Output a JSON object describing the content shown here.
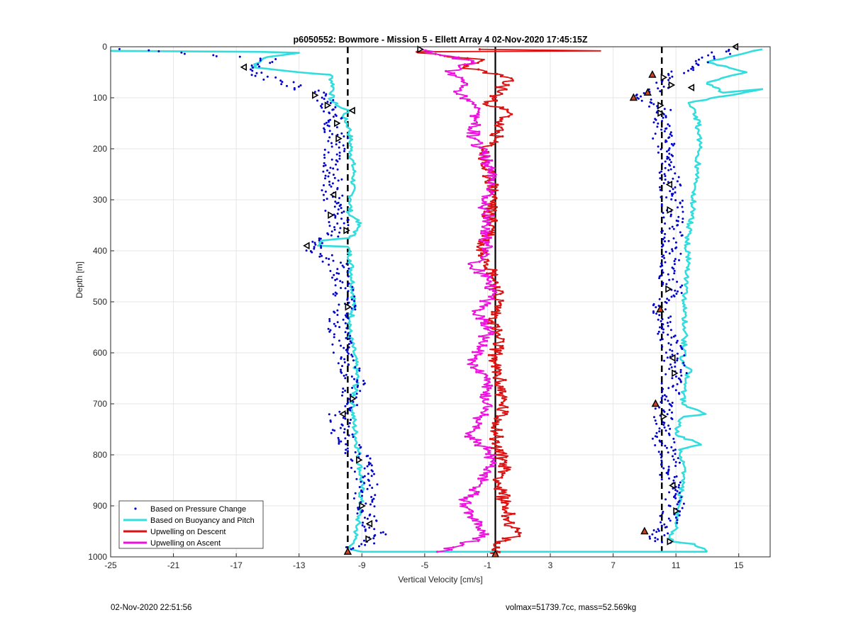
{
  "footer": {
    "left_text": "02-Nov-2020 22:51:56",
    "right_text": "volmax=51739.7cc, mass=52.569kg"
  },
  "chart_data": {
    "type": "line",
    "title": "p6050552: Bowmore - Mission 5 - Ellett Array 4 02-Nov-2020 17:45:15Z",
    "xlabel": "Vertical Velocity [cm/s]",
    "ylabel": "Depth [m]",
    "xlim": [
      -25,
      17
    ],
    "ylim": [
      1000,
      0
    ],
    "y_reversed": true,
    "xticks": [
      -25,
      -21,
      -17,
      -13,
      -9,
      -5,
      -1,
      3,
      7,
      11,
      15
    ],
    "yticks": [
      0,
      100,
      200,
      300,
      400,
      500,
      600,
      700,
      800,
      900,
      1000
    ],
    "grid": true,
    "legend_position": "bottom-left",
    "colors": {
      "pressure": "#0000cc",
      "buoyancy": "#33dddd",
      "descent": "#dd1111",
      "ascent": "#ee11dd",
      "reference": "#000000",
      "marker_fill": "#cc4422"
    },
    "reference_lines": {
      "solid_x": -0.5,
      "dashed_x": [
        -9.9,
        10.1
      ]
    },
    "series": [
      {
        "name": "Based on Pressure Change",
        "style": "dots",
        "descent_points": [
          [
            -24.2,
            5
          ],
          [
            -15,
            25
          ],
          [
            -16,
            50
          ],
          [
            -11.5,
            95
          ],
          [
            -11.2,
            120
          ],
          [
            -10.8,
            150
          ],
          [
            -10.6,
            180
          ],
          [
            -10.8,
            230
          ],
          [
            -10.9,
            290
          ],
          [
            -10.6,
            330
          ],
          [
            -10.3,
            360
          ],
          [
            -12.3,
            390
          ],
          [
            -10.4,
            430
          ],
          [
            -10.2,
            470
          ],
          [
            -10.0,
            510
          ],
          [
            -10.5,
            540
          ],
          [
            -10.2,
            600
          ],
          [
            -9.4,
            660
          ],
          [
            -9.8,
            700
          ],
          [
            -10.4,
            720
          ],
          [
            -10.3,
            760
          ],
          [
            -9.1,
            810
          ],
          [
            -8.7,
            860
          ],
          [
            -8.9,
            900
          ],
          [
            -8.4,
            930
          ],
          [
            -8.0,
            960
          ],
          [
            -9.9,
            990
          ]
        ],
        "ascent_points": [
          [
            14.5,
            5
          ],
          [
            12.5,
            30
          ],
          [
            10.5,
            60
          ],
          [
            10.2,
            80
          ],
          [
            8.9,
            95
          ],
          [
            10.0,
            120
          ],
          [
            10.1,
            170
          ],
          [
            10.4,
            220
          ],
          [
            10.6,
            270
          ],
          [
            10.8,
            320
          ],
          [
            10.7,
            380
          ],
          [
            10.5,
            440
          ],
          [
            10.9,
            480
          ],
          [
            10.0,
            515
          ],
          [
            10.4,
            560
          ],
          [
            10.9,
            610
          ],
          [
            11.0,
            640
          ],
          [
            10.6,
            680
          ],
          [
            10.2,
            700
          ],
          [
            10.4,
            720
          ],
          [
            10.0,
            750
          ],
          [
            10.6,
            800
          ],
          [
            10.7,
            860
          ],
          [
            10.9,
            910
          ],
          [
            9.8,
            960
          ],
          [
            10.5,
            975
          ]
        ]
      },
      {
        "name": "Based on Buoyancy and Pitch",
        "style": "line",
        "descent_points": [
          [
            -25,
            8
          ],
          [
            -15.5,
            10
          ],
          [
            -13,
            12
          ],
          [
            -15,
            20
          ],
          [
            -16,
            40
          ],
          [
            -13,
            50
          ],
          [
            -11,
            55
          ],
          [
            -10.8,
            80
          ],
          [
            -11,
            105
          ],
          [
            -10.3,
            120
          ],
          [
            -9.8,
            125
          ],
          [
            -10.2,
            135
          ],
          [
            -9.8,
            160
          ],
          [
            -9.7,
            200
          ],
          [
            -9.5,
            250
          ],
          [
            -9.7,
            300
          ],
          [
            -9.8,
            330
          ],
          [
            -9.2,
            340
          ],
          [
            -9.3,
            360
          ],
          [
            -9.8,
            375
          ],
          [
            -11.5,
            380
          ],
          [
            -11.8,
            390
          ],
          [
            -9.9,
            392
          ],
          [
            -9.7,
            420
          ],
          [
            -9.5,
            500
          ],
          [
            -9.8,
            560
          ],
          [
            -9.5,
            600
          ],
          [
            -9.3,
            650
          ],
          [
            -9.6,
            700
          ],
          [
            -9.5,
            740
          ],
          [
            -9.2,
            800
          ],
          [
            -9.0,
            860
          ],
          [
            -9.1,
            900
          ],
          [
            -9.4,
            960
          ],
          [
            -9.7,
            985
          ],
          [
            -9.0,
            990
          ],
          [
            13,
            990
          ]
        ],
        "ascent_points": [
          [
            13,
            990
          ],
          [
            12.2,
            975
          ],
          [
            10.8,
            970
          ],
          [
            10.6,
            960
          ],
          [
            11.0,
            940
          ],
          [
            11.2,
            900
          ],
          [
            11.4,
            860
          ],
          [
            11.5,
            820
          ],
          [
            11.2,
            790
          ],
          [
            12.6,
            780
          ],
          [
            11.0,
            760
          ],
          [
            11.2,
            740
          ],
          [
            11.5,
            725
          ],
          [
            12.9,
            720
          ],
          [
            11.4,
            700
          ],
          [
            11.5,
            680
          ],
          [
            11.6,
            650
          ],
          [
            12.0,
            634
          ],
          [
            11.4,
            620
          ],
          [
            11.6,
            560
          ],
          [
            11.5,
            500
          ],
          [
            11.8,
            430
          ],
          [
            11.7,
            380
          ],
          [
            12.0,
            330
          ],
          [
            12.2,
            280
          ],
          [
            12.5,
            200
          ],
          [
            12.4,
            150
          ],
          [
            12.1,
            120
          ],
          [
            11.8,
            110
          ],
          [
            16.5,
            83
          ],
          [
            14.0,
            90
          ],
          [
            13,
            70
          ],
          [
            15.5,
            50
          ],
          [
            13,
            30
          ],
          [
            16.5,
            5
          ]
        ]
      },
      {
        "name": "Upwelling on Descent",
        "style": "line",
        "points": [
          [
            -1.5,
            5
          ],
          [
            6.2,
            8
          ],
          [
            -5.5,
            10
          ],
          [
            -3.5,
            20
          ],
          [
            -1.2,
            25
          ],
          [
            -2.5,
            40
          ],
          [
            0.3,
            60
          ],
          [
            -0.2,
            90
          ],
          [
            -1.0,
            110
          ],
          [
            0.4,
            130
          ],
          [
            -0.3,
            150
          ],
          [
            -0.5,
            180
          ],
          [
            -1.2,
            200
          ],
          [
            -1.3,
            230
          ],
          [
            -0.8,
            260
          ],
          [
            -0.6,
            290
          ],
          [
            -0.9,
            330
          ],
          [
            -0.6,
            360
          ],
          [
            -1.5,
            390
          ],
          [
            -0.9,
            420
          ],
          [
            -0.5,
            460
          ],
          [
            -0.3,
            500
          ],
          [
            -0.6,
            540
          ],
          [
            -0.3,
            580
          ],
          [
            -0.6,
            620
          ],
          [
            -0.2,
            660
          ],
          [
            0.0,
            700
          ],
          [
            -0.3,
            740
          ],
          [
            -0.5,
            780
          ],
          [
            0.2,
            820
          ],
          [
            -0.3,
            860
          ],
          [
            0.2,
            900
          ],
          [
            0.5,
            940
          ],
          [
            1.0,
            955
          ],
          [
            -0.6,
            975
          ],
          [
            -0.4,
            995
          ]
        ]
      },
      {
        "name": "Upwelling on Ascent",
        "style": "line",
        "points": [
          [
            -4.2,
            990
          ],
          [
            -2.5,
            975
          ],
          [
            -1.2,
            960
          ],
          [
            -1.5,
            940
          ],
          [
            -2.0,
            920
          ],
          [
            -2.5,
            890
          ],
          [
            -1.5,
            860
          ],
          [
            -0.8,
            820
          ],
          [
            -1.0,
            790
          ],
          [
            -2.2,
            760
          ],
          [
            -1.5,
            730
          ],
          [
            -1.0,
            700
          ],
          [
            -1.0,
            660
          ],
          [
            -2.0,
            620
          ],
          [
            -1.5,
            590
          ],
          [
            -0.8,
            550
          ],
          [
            -1.8,
            520
          ],
          [
            -0.9,
            490
          ],
          [
            -0.8,
            460
          ],
          [
            -2.0,
            430
          ],
          [
            -1.0,
            400
          ],
          [
            -1.1,
            370
          ],
          [
            -0.9,
            340
          ],
          [
            -1.3,
            300
          ],
          [
            -0.6,
            270
          ],
          [
            -0.9,
            240
          ],
          [
            -1.3,
            210
          ],
          [
            -1.8,
            180
          ],
          [
            -2.0,
            160
          ],
          [
            -1.8,
            140
          ],
          [
            -1.9,
            110
          ],
          [
            -3.0,
            90
          ],
          [
            -2.5,
            70
          ],
          [
            -3.5,
            50
          ],
          [
            -2.0,
            30
          ],
          [
            -5.4,
            5
          ]
        ]
      }
    ],
    "triangle_markers": [
      [
        -16.5,
        40
      ],
      [
        -12.0,
        95
      ],
      [
        -11.2,
        115
      ],
      [
        -9.6,
        125
      ],
      [
        -10.6,
        150
      ],
      [
        -10.5,
        180
      ],
      [
        -10.8,
        290
      ],
      [
        -11.0,
        330
      ],
      [
        -10.0,
        360
      ],
      [
        -12.5,
        390
      ],
      [
        -9.9,
        510
      ],
      [
        -9.6,
        690
      ],
      [
        -10.2,
        720
      ],
      [
        -9.2,
        810
      ],
      [
        -9.0,
        900
      ],
      [
        -8.5,
        935
      ],
      [
        -8.6,
        965
      ],
      [
        -5.3,
        5
      ],
      [
        14.8,
        0
      ],
      [
        10.2,
        60
      ],
      [
        10.7,
        75
      ],
      [
        12.0,
        80
      ],
      [
        10.0,
        115
      ],
      [
        10.0,
        130
      ],
      [
        10.6,
        270
      ],
      [
        10.6,
        320
      ],
      [
        10.5,
        475
      ],
      [
        10.8,
        610
      ],
      [
        10.9,
        640
      ],
      [
        10.2,
        725
      ],
      [
        10.8,
        860
      ],
      [
        11.0,
        910
      ],
      [
        10.6,
        970
      ]
    ],
    "filled_markers": [
      [
        -9.9,
        990
      ],
      [
        9.5,
        55
      ],
      [
        9.2,
        90
      ],
      [
        8.3,
        100
      ],
      [
        10.0,
        515
      ],
      [
        9.7,
        700
      ],
      [
        9.0,
        950
      ],
      [
        -0.5,
        995
      ]
    ]
  }
}
